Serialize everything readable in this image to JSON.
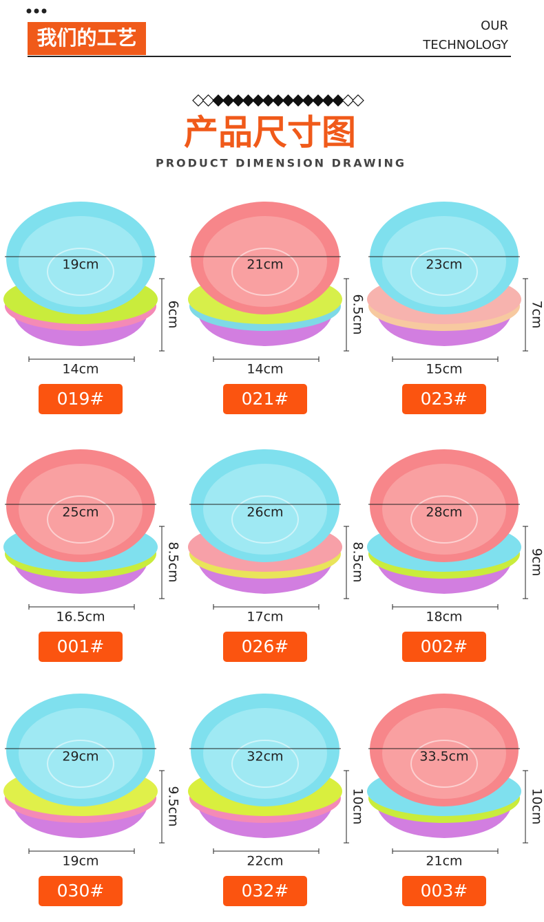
{
  "header": {
    "title": "我们的工艺",
    "subtitle_line1": "OUR",
    "subtitle_line2": "TECHNOLOGY"
  },
  "section": {
    "title": "产品尺寸图",
    "subtitle": "PRODUCT DIMENSION DRAWING"
  },
  "products": [
    {
      "top": "19cm",
      "height": "6cm",
      "bottom": "14cm",
      "code": "019#"
    },
    {
      "top": "21cm",
      "height": "6.5cm",
      "bottom": "14cm",
      "code": "021#"
    },
    {
      "top": "23cm",
      "height": "7cm",
      "bottom": "15cm",
      "code": "023#"
    },
    {
      "top": "25cm",
      "height": "8.5cm",
      "bottom": "16.5cm",
      "code": "001#"
    },
    {
      "top": "26cm",
      "height": "8.5cm",
      "bottom": "17cm",
      "code": "026#"
    },
    {
      "top": "28cm",
      "height": "9cm",
      "bottom": "18cm",
      "code": "002#"
    },
    {
      "top": "29cm",
      "height": "9.5cm",
      "bottom": "19cm",
      "code": "030#"
    },
    {
      "top": "32cm",
      "height": "10cm",
      "bottom": "22cm",
      "code": "032#"
    },
    {
      "top": "33.5cm",
      "height": "10cm",
      "bottom": "21cm",
      "code": "003#"
    }
  ]
}
